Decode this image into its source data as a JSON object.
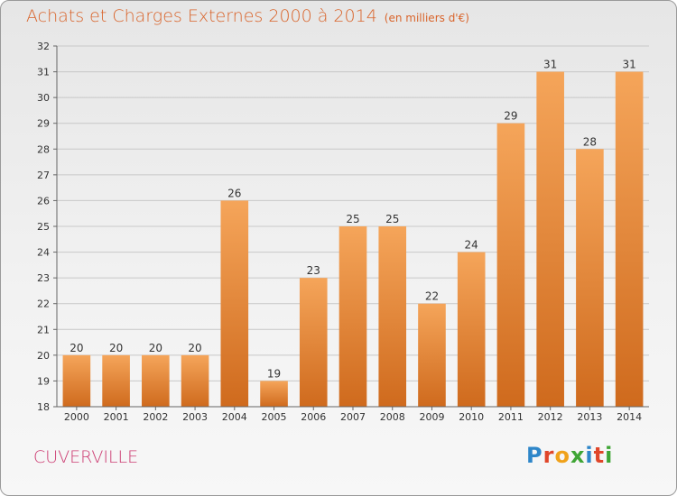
{
  "header": {
    "title": "Achats et Charges Externes 2000 à 2014",
    "unit": "(en milliers d'€)"
  },
  "footer": {
    "city": "CUVERVILLE",
    "logo_text": "Proxiti"
  },
  "colors": {
    "bar_top": "#f5a55a",
    "bar_bottom": "#cf6a1d",
    "title": "#d9642b",
    "city": "#cc3c72",
    "grid": "#c8c8c8"
  },
  "chart_data": {
    "type": "bar",
    "title": "Achats et Charges Externes 2000 à 2014",
    "subtitle": "(en milliers d'€)",
    "xlabel": "",
    "ylabel": "",
    "categories": [
      "2000",
      "2001",
      "2002",
      "2003",
      "2004",
      "2005",
      "2006",
      "2007",
      "2008",
      "2009",
      "2010",
      "2011",
      "2012",
      "2013",
      "2014"
    ],
    "values": [
      20,
      20,
      20,
      20,
      26,
      19,
      23,
      25,
      25,
      22,
      24,
      29,
      31,
      28,
      31
    ],
    "ylim": [
      18,
      32
    ],
    "yticks": [
      18,
      19,
      20,
      21,
      22,
      23,
      24,
      25,
      26,
      27,
      28,
      29,
      30,
      31,
      32
    ],
    "grid": true,
    "data_labels": true
  }
}
